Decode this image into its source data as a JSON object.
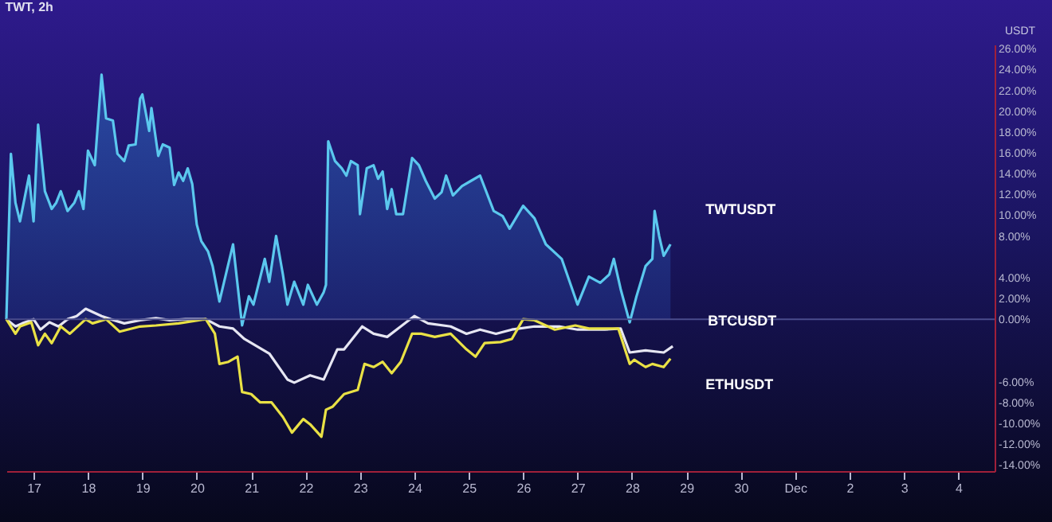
{
  "chart_data": {
    "type": "line",
    "title": "TWT, 2h",
    "ylabel": "USDT",
    "xlim": [
      "--11-16T12:00",
      "--12-04T16:00"
    ],
    "xticks": [
      {
        "value": "--11-17",
        "label": "17"
      },
      {
        "value": "--11-18",
        "label": "18"
      },
      {
        "value": "--11-19",
        "label": "19"
      },
      {
        "value": "--11-20",
        "label": "20"
      },
      {
        "value": "--11-21",
        "label": "21"
      },
      {
        "value": "--11-22",
        "label": "22"
      },
      {
        "value": "--11-23",
        "label": "23"
      },
      {
        "value": "--11-24",
        "label": "24"
      },
      {
        "value": "--11-25",
        "label": "25"
      },
      {
        "value": "--11-26",
        "label": "26"
      },
      {
        "value": "--11-27",
        "label": "27"
      },
      {
        "value": "--11-28",
        "label": "28"
      },
      {
        "value": "--11-29",
        "label": "29"
      },
      {
        "value": "--11-30",
        "label": "30"
      },
      {
        "value": "--12-01",
        "label": "Dec"
      },
      {
        "value": "--12-02",
        "label": "2"
      },
      {
        "value": "--12-03",
        "label": "3"
      },
      {
        "value": "--12-04",
        "label": "4"
      }
    ],
    "ylim": [
      -14.6,
      26.4
    ],
    "yticks": [
      {
        "value": 26,
        "label": "26.00%"
      },
      {
        "value": 24,
        "label": "24.00%"
      },
      {
        "value": 22,
        "label": "22.00%"
      },
      {
        "value": 20,
        "label": "20.00%"
      },
      {
        "value": 18,
        "label": "18.00%"
      },
      {
        "value": 16,
        "label": "16.00%"
      },
      {
        "value": 14,
        "label": "14.00%"
      },
      {
        "value": 12,
        "label": "12.00%"
      },
      {
        "value": 10,
        "label": "10.00%"
      },
      {
        "value": 8,
        "label": "8.00%"
      },
      {
        "value": 4,
        "label": "4.00%"
      },
      {
        "value": 2,
        "label": "2.00%"
      },
      {
        "value": 0,
        "label": "0.00%"
      },
      {
        "value": -6,
        "label": "-6.00%"
      },
      {
        "value": -8,
        "label": "-8.00%"
      },
      {
        "value": -10,
        "label": "-10.00%"
      },
      {
        "value": -12,
        "label": "-12.00%"
      },
      {
        "value": -14,
        "label": "-14.00%"
      }
    ],
    "grid": false,
    "ref_lines": [
      {
        "axis": "y",
        "value": 0,
        "color": "#4a4c8c"
      }
    ],
    "series": [
      {
        "name": "TWTUSDT",
        "type": "area",
        "color": "#5bc8ee",
        "x": [
          "--11-16T12:00",
          "--11-16T14:00",
          "--11-16T16:00",
          "--11-16T18:00",
          "--11-16T22:00",
          "--11-17T00:00",
          "--11-17T02:00",
          "--11-17T05:00",
          "--11-17T08:00",
          "--11-17T10:00",
          "--11-17T12:00",
          "--11-17T15:00",
          "--11-17T18:00",
          "--11-17T20:00",
          "--11-17T22:00",
          "--11-18T00:00",
          "--11-18T03:00",
          "--11-18T06:00",
          "--11-18T08:00",
          "--11-18T11:00",
          "--11-18T13:00",
          "--11-18T16:00",
          "--11-18T18:00",
          "--11-18T21:00",
          "--11-18T23:00",
          "--11-19T00:00",
          "--11-19T03:00",
          "--11-19T04:00",
          "--11-19T07:00",
          "--11-19T09:00",
          "--11-19T12:00",
          "--11-19T14:00",
          "--11-19T16:00",
          "--11-19T18:00",
          "--11-19T20:00",
          "--11-19T22:00",
          "--11-20T00:00",
          "--11-20T02:00",
          "--11-20T05:00",
          "--11-20T07:00",
          "--11-20T10:00",
          "--11-20T16:00",
          "--11-20T20:00",
          "--11-20T23:00",
          "--11-21T01:00",
          "--11-21T06:00",
          "--11-21T08:00",
          "--11-21T11:00",
          "--11-21T14:00",
          "--11-21T16:00",
          "--11-21T19:00",
          "--11-21T23:00",
          "--11-22T01:00",
          "--11-22T05:00",
          "--11-22T08:00",
          "--11-22T09:00",
          "--11-22T10:00",
          "--11-22T13:00",
          "--11-22T16:00",
          "--11-22T18:00",
          "--11-22T20:00",
          "--11-22T23:00",
          "--11-23T00:00",
          "--11-23T03:00",
          "--11-23T06:00",
          "--11-23T08:00",
          "--11-23T10:00",
          "--11-23T12:00",
          "--11-23T14:00",
          "--11-23T16:00",
          "--11-23T19:00",
          "--11-23T23:00",
          "--11-24T02:00",
          "--11-24T05:00",
          "--11-24T09:00",
          "--11-24T12:00",
          "--11-24T14:00",
          "--11-24T17:00",
          "--11-24T21:00",
          "--11-25T01:00",
          "--11-25T05:00",
          "--11-25T11:00",
          "--11-25T15:00",
          "--11-25T18:00",
          "--11-26T00:00",
          "--11-26T05:00",
          "--11-26T10:00",
          "--11-26T17:00",
          "--11-27T00:00",
          "--11-27T05:00",
          "--11-27T10:00",
          "--11-27T14:00",
          "--11-27T16:00",
          "--11-27T19:00",
          "--11-27T23:00",
          "--11-28T02:00",
          "--11-28T06:00",
          "--11-28T09:00",
          "--11-28T10:00",
          "--11-28T12:00",
          "--11-28T14:00",
          "--11-28T17:00"
        ],
        "values": [
          0,
          15.9,
          11.2,
          9.4,
          13.8,
          9.4,
          18.7,
          12.3,
          10.6,
          11.2,
          12.3,
          10.4,
          11.2,
          12.3,
          10.6,
          16.2,
          14.8,
          23.5,
          19.3,
          19.1,
          15.9,
          15.2,
          16.7,
          16.8,
          21.2,
          21.6,
          18.1,
          20.3,
          15.7,
          16.8,
          16.5,
          12.9,
          14.1,
          13.3,
          14.5,
          13,
          9.1,
          7.5,
          6.5,
          5.1,
          1.7,
          7.2,
          -0.6,
          2.2,
          1.4,
          5.8,
          3.6,
          8,
          4.3,
          1.4,
          3.6,
          1.4,
          3.3,
          1.4,
          2.6,
          3.3,
          17.1,
          15.2,
          14.5,
          13.8,
          15.2,
          14.8,
          10.1,
          14.5,
          14.8,
          13.5,
          14.2,
          10.6,
          12.5,
          10.1,
          10.1,
          15.5,
          14.8,
          13.3,
          11.6,
          12.2,
          13.8,
          11.9,
          12.8,
          13.3,
          13.8,
          10.4,
          9.9,
          8.7,
          10.9,
          9.7,
          7.2,
          5.8,
          1.4,
          4.1,
          3.5,
          4.3,
          5.8,
          2.9,
          -0.3,
          2.2,
          5.1,
          5.8,
          10.4,
          8,
          6.1,
          7.2
        ]
      },
      {
        "name": "BTCUSDT",
        "type": "line",
        "color": "#e6e6f2",
        "x": [
          "--11-16T12:00",
          "--11-16T16:00",
          "--11-16T19:00",
          "--11-17T00:00",
          "--11-17T03:00",
          "--11-17T07:00",
          "--11-17T11:00",
          "--11-17T15:00",
          "--11-17T19:00",
          "--11-17T23:00",
          "--11-18T02:00",
          "--11-18T06:00",
          "--11-18T10:00",
          "--11-18T16:00",
          "--11-18T23:00",
          "--11-19T06:00",
          "--11-19T12:00",
          "--11-19T19:00",
          "--11-20T04:00",
          "--11-20T10:00",
          "--11-20T16:00",
          "--11-20T21:00",
          "--11-21T08:00",
          "--11-21T16:00",
          "--11-21T19:00",
          "--11-22T02:00",
          "--11-22T08:00",
          "--11-22T14:00",
          "--11-22T17:00",
          "--11-23T01:00",
          "--11-23T06:00",
          "--11-23T12:00",
          "--11-23T18:00",
          "--11-24T00:00",
          "--11-24T06:00",
          "--11-24T16:00",
          "--11-24T23:00",
          "--11-25T05:00",
          "--11-25T12:00",
          "--11-25T19:00",
          "--11-26T05:00",
          "--11-26T16:00",
          "--11-27T00:00",
          "--11-27T12:00",
          "--11-27T19:00",
          "--11-27T23:00",
          "--11-28T06:00",
          "--11-28T14:00",
          "--11-28T18:00"
        ],
        "values": [
          0,
          -0.7,
          -0.4,
          0,
          -1,
          -0.3,
          -0.7,
          0,
          0.3,
          1,
          0.7,
          0.3,
          0,
          -0.4,
          -0.1,
          0.1,
          -0.1,
          0,
          0,
          -0.7,
          -0.9,
          -1.9,
          -3.3,
          -5.8,
          -6.1,
          -5.4,
          -5.8,
          -2.9,
          -2.9,
          -0.7,
          -1.4,
          -1.7,
          -0.7,
          0.3,
          -0.4,
          -0.7,
          -1.4,
          -1,
          -1.4,
          -1,
          -0.7,
          -0.7,
          -1,
          -1,
          -0.9,
          -3.2,
          -3,
          -3.2,
          -2.6
        ]
      },
      {
        "name": "ETHUSDT",
        "type": "line",
        "color": "#e9e145",
        "x": [
          "--11-16T12:00",
          "--11-16T16:00",
          "--11-16T18:00",
          "--11-16T23:00",
          "--11-17T02:00",
          "--11-17T05:00",
          "--11-17T08:00",
          "--11-17T12:00",
          "--11-17T16:00",
          "--11-17T23:00",
          "--11-18T02:00",
          "--11-18T08:00",
          "--11-18T14:00",
          "--11-18T23:00",
          "--11-19T06:00",
          "--11-19T16:00",
          "--11-20T04:00",
          "--11-20T08:00",
          "--11-20T10:00",
          "--11-20T14:00",
          "--11-20T18:00",
          "--11-20T20:00",
          "--11-21T00:00",
          "--11-21T04:00",
          "--11-21T09:00",
          "--11-21T14:00",
          "--11-21T18:00",
          "--11-21T23:00",
          "--11-22T02:00",
          "--11-22T07:00",
          "--11-22T09:00",
          "--11-22T12:00",
          "--11-22T17:00",
          "--11-22T23:00",
          "--11-23T02:00",
          "--11-23T06:00",
          "--11-23T10:00",
          "--11-23T14:00",
          "--11-23T18:00",
          "--11-23T23:00",
          "--11-24T03:00",
          "--11-24T09:00",
          "--11-24T16:00",
          "--11-24T23:00",
          "--11-25T03:00",
          "--11-25T07:00",
          "--11-25T14:00",
          "--11-25T19:00",
          "--11-26T00:00",
          "--11-26T05:00",
          "--11-26T14:00",
          "--11-26T23:00",
          "--11-27T05:00",
          "--11-27T18:00",
          "--11-27T23:00",
          "--11-28T01:00",
          "--11-28T06:00",
          "--11-28T09:00",
          "--11-28T14:00",
          "--11-28T17:00"
        ],
        "values": [
          0,
          -1.4,
          -0.7,
          -0.3,
          -2.5,
          -1.4,
          -2.3,
          -0.7,
          -1.4,
          0,
          -0.4,
          0,
          -1.2,
          -0.7,
          -0.6,
          -0.4,
          0,
          -1.4,
          -4.3,
          -4.1,
          -3.6,
          -7,
          -7.2,
          -8,
          -8,
          -9.4,
          -10.9,
          -9.6,
          -10.1,
          -11.3,
          -8.7,
          -8.4,
          -7.2,
          -6.8,
          -4.3,
          -4.6,
          -4.1,
          -5.2,
          -4.1,
          -1.4,
          -1.4,
          -1.7,
          -1.4,
          -2.9,
          -3.6,
          -2.3,
          -2.2,
          -1.9,
          0,
          -0.1,
          -1,
          -0.6,
          -0.9,
          -0.9,
          -4.3,
          -3.9,
          -4.6,
          -4.3,
          -4.6,
          -3.8
        ]
      }
    ]
  }
}
